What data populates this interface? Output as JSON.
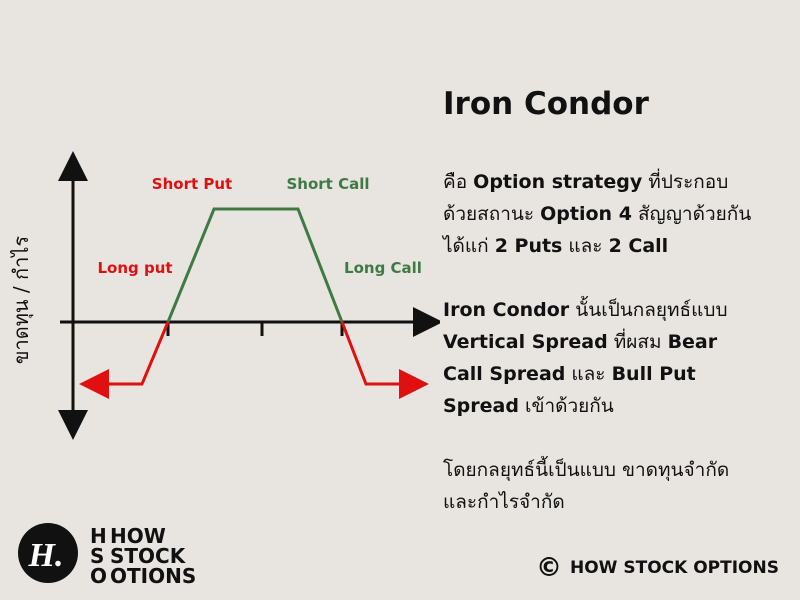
{
  "title": "Iron Condor",
  "diagram": {
    "y_axis_label": "ขาดทุน / กำไร",
    "labels": {
      "short_put": "Short Put",
      "short_call": "Short Call",
      "long_put": "Long put",
      "long_call": "Long Call"
    }
  },
  "description": [
    [
      [
        {
          "text": "คือ ",
          "bold": false
        },
        {
          "text": "Option strategy",
          "bold": true
        },
        {
          "text": " ที่ประกอบ",
          "bold": false
        }
      ],
      [
        {
          "text": "ด้วยสถานะ ",
          "bold": false
        },
        {
          "text": "Option 4",
          "bold": true
        },
        {
          "text": " สัญญาด้วยกัน",
          "bold": false
        }
      ],
      [
        {
          "text": "ได้แก่ ",
          "bold": false
        },
        {
          "text": "2 Puts",
          "bold": true
        },
        {
          "text": " และ ",
          "bold": false
        },
        {
          "text": "2 Call",
          "bold": true
        }
      ]
    ],
    [
      [
        {
          "text": "Iron Condor",
          "bold": true
        },
        {
          "text": " นั้นเป็นกลยุทธ์แบบ",
          "bold": false
        }
      ],
      [
        {
          "text": "Vertical Spread",
          "bold": true
        },
        {
          "text": " ที่ผสม ",
          "bold": false
        },
        {
          "text": "Bear",
          "bold": true
        }
      ],
      [
        {
          "text": "Call Spread",
          "bold": true
        },
        {
          "text": " และ ",
          "bold": false
        },
        {
          "text": "Bull Put",
          "bold": true
        }
      ],
      [
        {
          "text": "Spread",
          "bold": true
        },
        {
          "text": " เข้าด้วยกัน",
          "bold": false
        }
      ]
    ],
    [
      [
        {
          "text": "โดยกลยุทธ์นี้เป็นแบบ ขาดทุนจำกัด",
          "bold": false
        }
      ],
      [
        {
          "text": "และกำไรจำกัด",
          "bold": false
        }
      ]
    ]
  ],
  "logo": {
    "mark": "H.",
    "initials": [
      "H",
      "S",
      "O"
    ],
    "words": [
      "HOW",
      "STOCK",
      "OTIONS"
    ]
  },
  "footer": {
    "symbol": "©",
    "text": "HOW STOCK OPTIONS"
  }
}
